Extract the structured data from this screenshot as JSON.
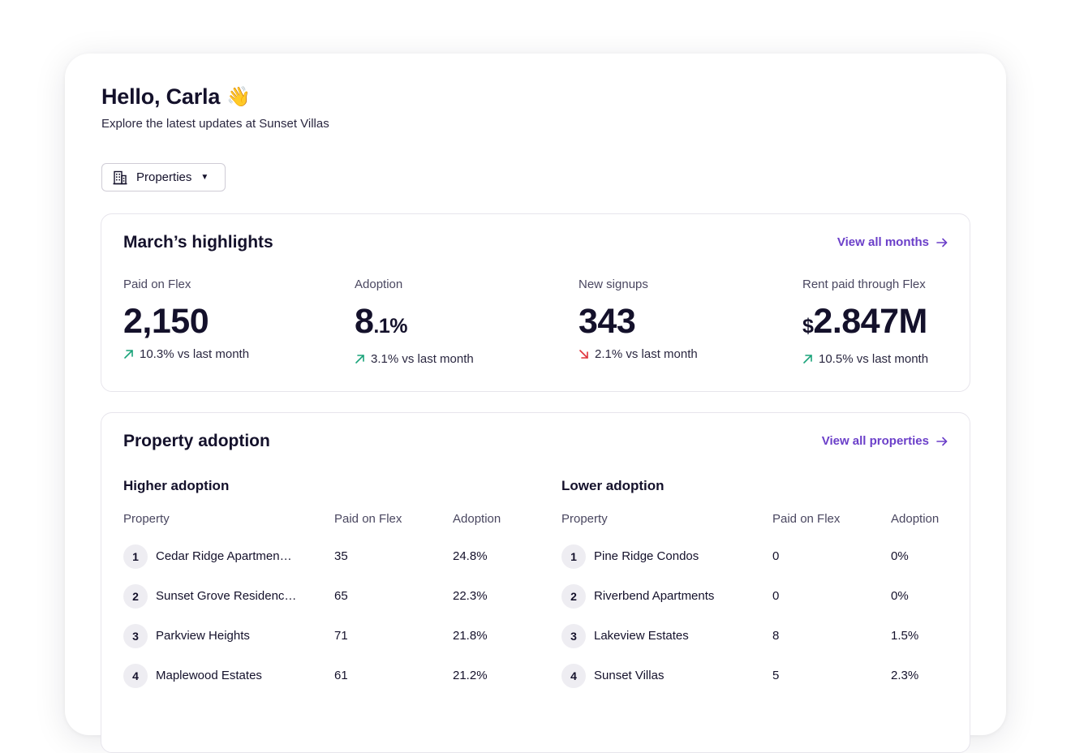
{
  "header": {
    "greeting": "Hello, Carla",
    "wave_emoji": "👋",
    "subtitle": "Explore the latest updates at Sunset Villas"
  },
  "property_selector": {
    "label": "Properties",
    "icon": "building-icon"
  },
  "highlights": {
    "title": "March’s highlights",
    "view_all": "View all months",
    "stats": [
      {
        "label": "Paid on Flex",
        "value_main": "2,150",
        "value_suffix": "",
        "value_prefix": "",
        "change": "10.3% vs last month",
        "direction": "up"
      },
      {
        "label": "Adoption",
        "value_main": "8",
        "value_suffix": ".1%",
        "value_prefix": "",
        "change": "3.1% vs last month",
        "direction": "up"
      },
      {
        "label": "New signups",
        "value_main": "343",
        "value_suffix": "",
        "value_prefix": "",
        "change": "2.1% vs last month",
        "direction": "down"
      },
      {
        "label": "Rent paid through Flex",
        "value_main": "2.847M",
        "value_suffix": "",
        "value_prefix": "$",
        "change": "10.5% vs last month",
        "direction": "up"
      }
    ]
  },
  "adoption": {
    "title": "Property adoption",
    "view_all": "View all properties",
    "higher": {
      "title": "Higher adoption",
      "columns": [
        "Property",
        "Paid on Flex",
        "Adoption"
      ],
      "rows": [
        {
          "rank": "1",
          "property": "Cedar Ridge Apartmen…",
          "paid": "35",
          "adoption": "24.8%"
        },
        {
          "rank": "2",
          "property": "Sunset Grove Residenc…",
          "paid": "65",
          "adoption": "22.3%"
        },
        {
          "rank": "3",
          "property": "Parkview Heights",
          "paid": "71",
          "adoption": "21.8%"
        },
        {
          "rank": "4",
          "property": "Maplewood Estates",
          "paid": "61",
          "adoption": "21.2%"
        }
      ]
    },
    "lower": {
      "title": "Lower adoption",
      "columns": [
        "Property",
        "Paid on Flex",
        "Adoption"
      ],
      "rows": [
        {
          "rank": "1",
          "property": "Pine Ridge Condos",
          "paid": "0",
          "adoption": "0%"
        },
        {
          "rank": "2",
          "property": "Riverbend Apartments",
          "paid": "0",
          "adoption": "0%"
        },
        {
          "rank": "3",
          "property": "Lakeview Estates",
          "paid": "8",
          "adoption": "1.5%"
        },
        {
          "rank": "4",
          "property": "Sunset Villas",
          "paid": "5",
          "adoption": "2.3%"
        }
      ]
    }
  },
  "colors": {
    "accent": "#6b3fc9",
    "up": "#1aa37a",
    "down": "#e0323a"
  }
}
